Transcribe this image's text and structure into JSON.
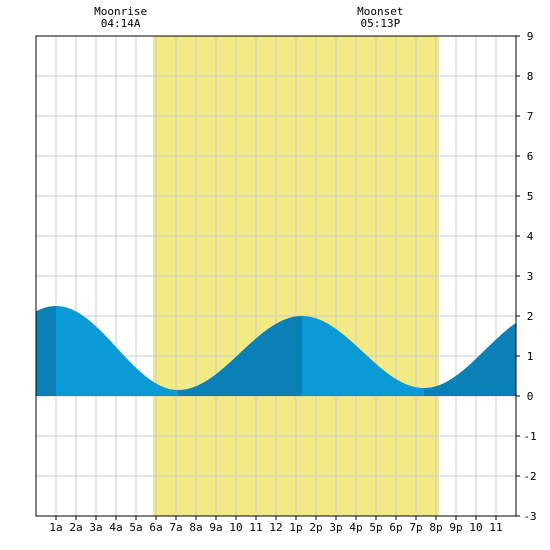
{
  "moon": {
    "rise_label": "Moonrise",
    "rise_time": "04:14A",
    "set_label": "Moonset",
    "set_time": "05:13P"
  },
  "chart_data": {
    "type": "area",
    "title": "",
    "xlabel": "",
    "ylabel": "",
    "xlim": [
      0,
      24
    ],
    "ylim": [
      -3,
      9
    ],
    "grid": true,
    "x_tick_labels": [
      "1a",
      "2a",
      "3a",
      "4a",
      "5a",
      "6a",
      "7a",
      "8a",
      "9a",
      "10",
      "11",
      "12",
      "1p",
      "2p",
      "3p",
      "4p",
      "5p",
      "6p",
      "7p",
      "8p",
      "9p",
      "10",
      "11"
    ],
    "y_tick_labels": [
      "9",
      "8",
      "7",
      "6",
      "5",
      "4",
      "3",
      "2",
      "1",
      "0",
      "-1",
      "-2",
      "-3"
    ],
    "daylight_start_hour": 5.85,
    "daylight_end_hour": 20.15,
    "extremes": [
      {
        "hour": 1.0,
        "height": 2.25,
        "kind": "high"
      },
      {
        "hour": 7.1,
        "height": 0.15,
        "kind": "low"
      },
      {
        "hour": 13.3,
        "height": 2.0,
        "kind": "high"
      },
      {
        "hour": 19.4,
        "height": 0.2,
        "kind": "low"
      }
    ],
    "start_height": 2.1,
    "end_height": 2.0,
    "colors": {
      "daylight": "#f2ea84",
      "tide_light": "#0a9ad6",
      "tide_dark": "#0a80b6",
      "grid": "#cccccc"
    }
  }
}
